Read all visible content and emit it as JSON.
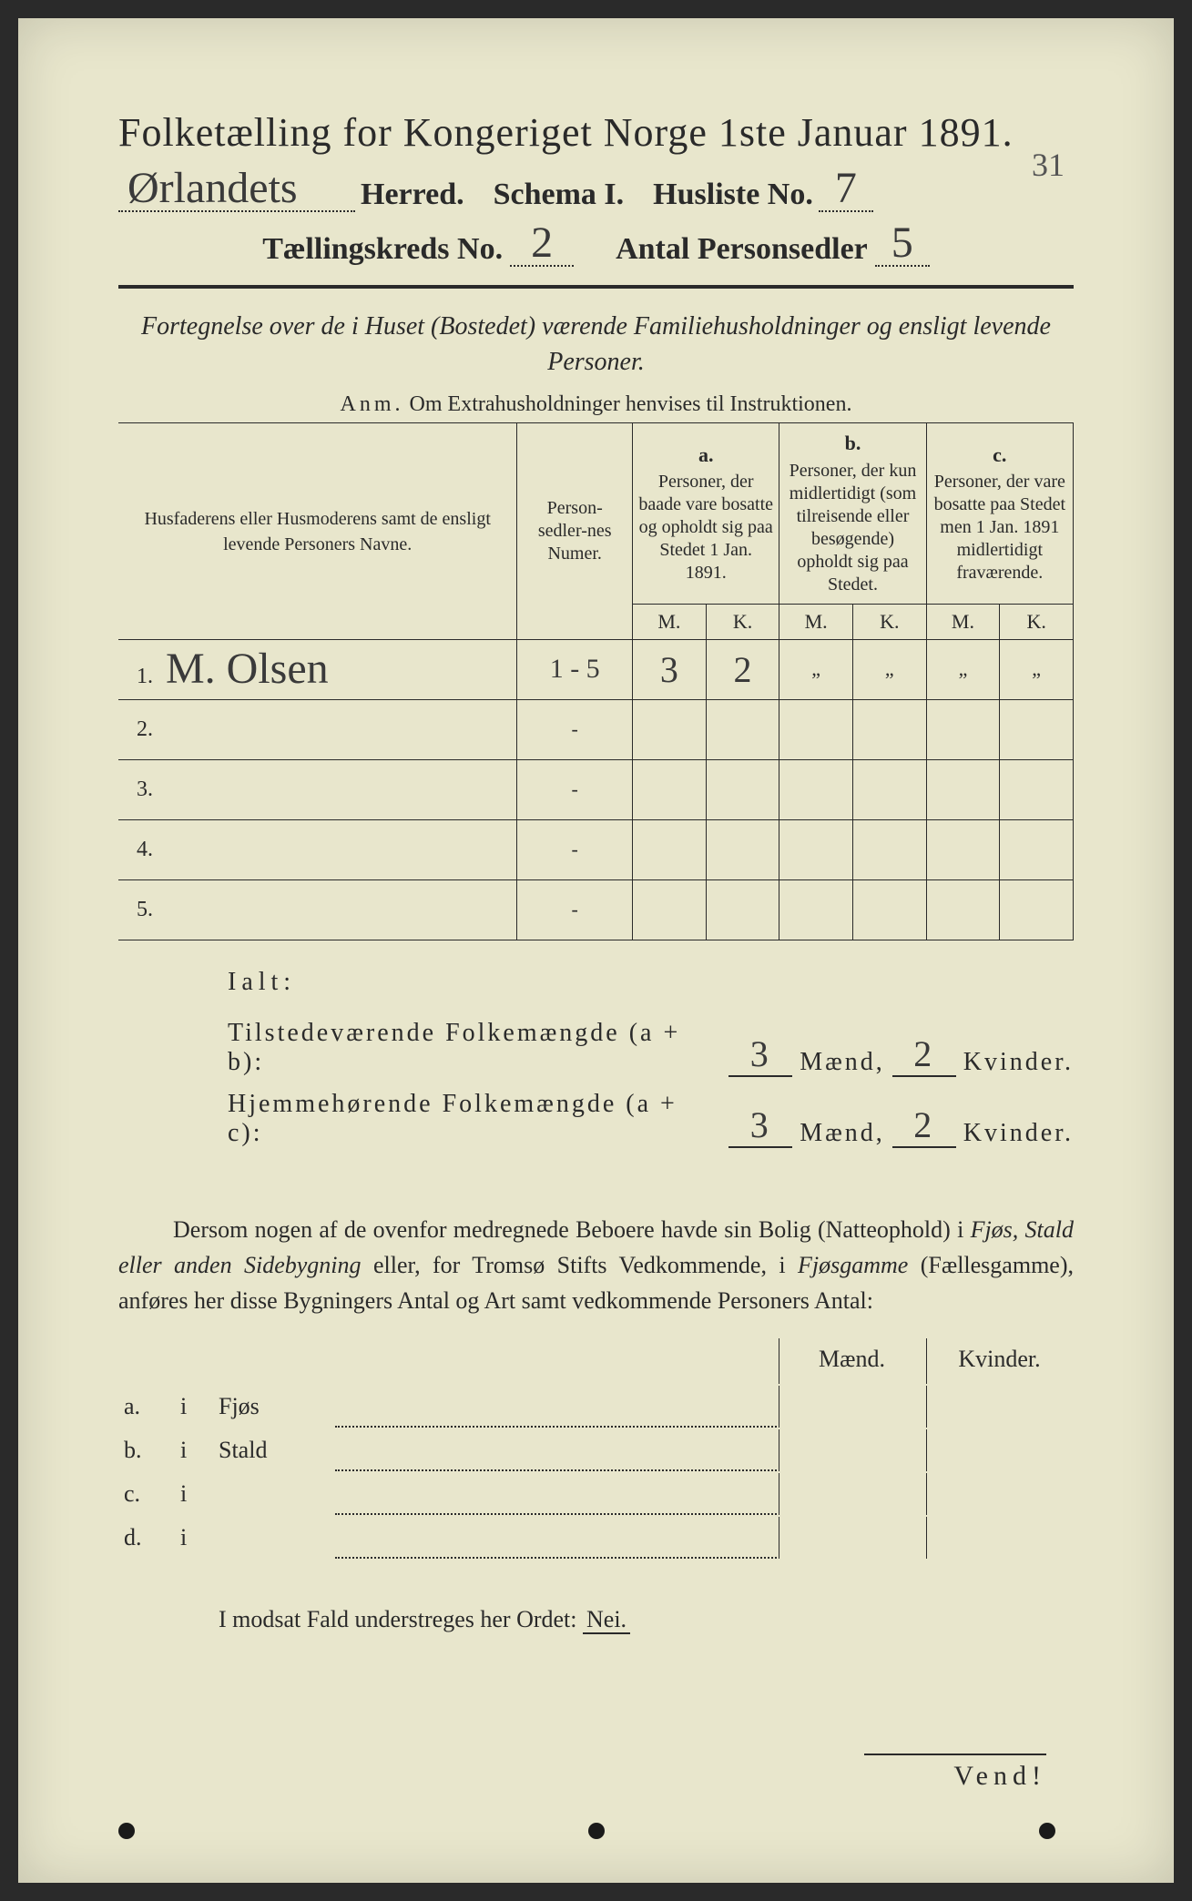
{
  "colors": {
    "paper": "#e8e6cc",
    "ink": "#2a2a2a",
    "pencil": "#555555"
  },
  "header": {
    "title": "Folketælling for Kongeriget Norge 1ste Januar 1891.",
    "herred_value": "Ørlandets",
    "herred_label": "Herred.",
    "schema_label": "Schema I.",
    "husliste_label": "Husliste No.",
    "husliste_value": "7",
    "kreds_label": "Tællingskreds No.",
    "kreds_value": "2",
    "sedler_label": "Antal Personsedler",
    "sedler_value": "5",
    "annotation_topright": "31"
  },
  "intro": {
    "line": "Fortegnelse over de i Huset (Bostedet) værende Familiehusholdninger og ensligt levende Personer.",
    "anm_prefix": "Anm.",
    "anm_text": "Om Extrahusholdninger henvises til Instruktionen."
  },
  "table": {
    "col_name": "Husfaderens eller Husmoderens samt de ensligt levende Personers Navne.",
    "col_num": "Person-sedler-nes Numer.",
    "col_a_letter": "a.",
    "col_a": "Personer, der baade vare bosatte og opholdt sig paa Stedet 1 Jan. 1891.",
    "col_b_letter": "b.",
    "col_b": "Personer, der kun midlertidigt (som tilreisende eller besøgende) opholdt sig paa Stedet.",
    "col_c_letter": "c.",
    "col_c": "Personer, der vare bosatte paa Stedet men 1 Jan. 1891 midlertidigt fraværende.",
    "m": "M.",
    "k": "K.",
    "rows": [
      {
        "n": "1.",
        "name": "M. Olsen",
        "num": "1 - 5",
        "am": "3",
        "ak": "2",
        "bm": "„",
        "bk": "„",
        "cm": "„",
        "ck": "„"
      },
      {
        "n": "2.",
        "name": "",
        "num": "-",
        "am": "",
        "ak": "",
        "bm": "",
        "bk": "",
        "cm": "",
        "ck": ""
      },
      {
        "n": "3.",
        "name": "",
        "num": "-",
        "am": "",
        "ak": "",
        "bm": "",
        "bk": "",
        "cm": "",
        "ck": ""
      },
      {
        "n": "4.",
        "name": "",
        "num": "-",
        "am": "",
        "ak": "",
        "bm": "",
        "bk": "",
        "cm": "",
        "ck": ""
      },
      {
        "n": "5.",
        "name": "",
        "num": "-",
        "am": "",
        "ak": "",
        "bm": "",
        "bk": "",
        "cm": "",
        "ck": ""
      }
    ]
  },
  "totals": {
    "ialt": "Ialt:",
    "line1_label": "Tilstedeværende Folkemængde (a + b):",
    "line2_label": "Hjemmehørende Folkemængde (a + c):",
    "maend": "Mænd,",
    "kvinder": "Kvinder.",
    "l1_m": "3",
    "l1_k": "2",
    "l2_m": "3",
    "l2_k": "2"
  },
  "para": {
    "text_pre": "Dersom nogen af de ovenfor medregnede Beboere havde sin Bolig (Natteophold) i ",
    "em1": "Fjøs, Stald eller anden Sidebygning",
    "text_mid": " eller, for Tromsø Stifts Vedkommende, i ",
    "em2": "Fjøsgamme",
    "text_mid2": " (Fællesgamme), anføres her disse Bygningers Antal og Art samt vedkommende Personers Antal:"
  },
  "subtable": {
    "maend": "Mænd.",
    "kvinder": "Kvinder.",
    "rows": [
      {
        "l": "a.",
        "i": "i",
        "cat": "Fjøs"
      },
      {
        "l": "b.",
        "i": "i",
        "cat": "Stald"
      },
      {
        "l": "c.",
        "i": "i",
        "cat": ""
      },
      {
        "l": "d.",
        "i": "i",
        "cat": ""
      }
    ]
  },
  "nei": {
    "text_pre": "I modsat Fald understreges her Ordet:",
    "nei": "Nei."
  },
  "vend": "Vend!"
}
